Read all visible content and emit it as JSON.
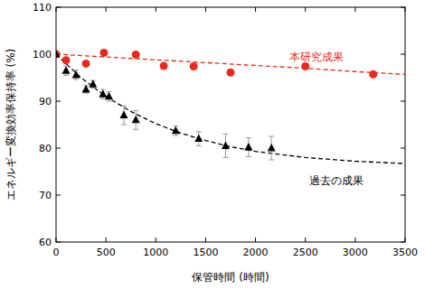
{
  "chart_data": {
    "type": "scatter",
    "x_label": "保管時間 (時間)",
    "y_label": "エネルギー変換効率保持率 (%)",
    "xlim": [
      0,
      3500
    ],
    "xticks": [
      0,
      500,
      1000,
      1500,
      2000,
      2500,
      3000,
      3500
    ],
    "ylim": [
      60,
      110
    ],
    "yticks": [
      60,
      70,
      80,
      90,
      100,
      110
    ],
    "grid": false,
    "series": [
      {
        "name": "本研究成果",
        "type": "scatter",
        "marker": "circle",
        "color": "#e8291c",
        "x": [
          0,
          100,
          300,
          480,
          800,
          1080,
          1380,
          1750,
          2500,
          3180
        ],
        "values": [
          100,
          98.7,
          98,
          100.3,
          99.9,
          97.5,
          97.4,
          96.1,
          97.4,
          95.7
        ]
      },
      {
        "name": "過去の成果",
        "type": "scatter",
        "marker": "triangle",
        "color": "#000000",
        "x": [
          0,
          100,
          200,
          300,
          370,
          470,
          530,
          680,
          800,
          1200,
          1430,
          1700,
          1930,
          2160
        ],
        "values": [
          100,
          96.5,
          95.6,
          92.5,
          93.6,
          91.5,
          91,
          87,
          86,
          83.7,
          82,
          80.5,
          80.2,
          80
        ],
        "errors": [
          0.3,
          1,
          1,
          0.8,
          0.8,
          1,
          1,
          2,
          2,
          1,
          1.5,
          2.5,
          2,
          2.5
        ]
      },
      {
        "type": "line",
        "line_style": "dashed",
        "color": "#e8291c",
        "x": [
          0,
          500,
          1000,
          1500,
          2000,
          2500,
          3000,
          3500
        ],
        "values": [
          100,
          99.4,
          98.8,
          98.2,
          97.6,
          97,
          96.3,
          95.7
        ]
      },
      {
        "type": "line",
        "line_style": "dashed",
        "color": "#000000",
        "x": [
          0,
          250,
          500,
          750,
          1000,
          1250,
          1500,
          1750,
          2000,
          2500,
          3000,
          3500
        ],
        "values": [
          100,
          95,
          91,
          87.8,
          85.2,
          83.2,
          81.6,
          80.3,
          79.3,
          78,
          77.2,
          76.7
        ]
      }
    ]
  }
}
